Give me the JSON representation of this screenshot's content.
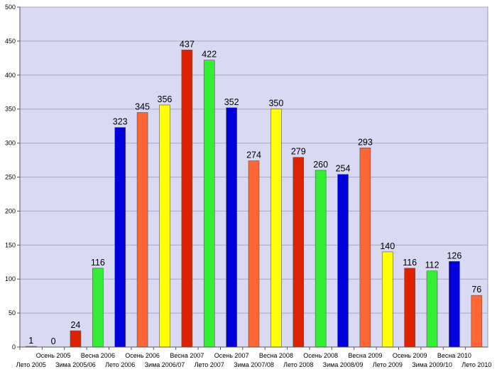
{
  "chart_data": {
    "type": "bar",
    "title": "",
    "xlabel": "",
    "ylabel": "",
    "ylim": [
      0,
      500
    ],
    "yticks": [
      0,
      50,
      100,
      150,
      200,
      250,
      300,
      350,
      400,
      450,
      500
    ],
    "grid": true,
    "legend": "none",
    "background_color": "#d9d9f3",
    "categories": [
      "Лето 2005",
      "Осень 2005",
      "Зима 2005/06",
      "Весна 2006",
      "Лето 2006",
      "Осень 2006",
      "Зима 2006/07",
      "Весна 2007",
      "Лето 2007",
      "Осень 2007",
      "Зима 2007/08",
      "Весна 2008",
      "Лето 2008",
      "Осень 2008",
      "Зима 2008/09",
      "Весна 2009",
      "Лето 2009",
      "Осень 2009",
      "Зима 2009/10",
      "Весна 2010",
      "Лето 2010"
    ],
    "values": [
      1,
      0,
      24,
      116,
      323,
      345,
      356,
      437,
      422,
      352,
      274,
      350,
      279,
      260,
      254,
      293,
      140,
      116,
      112,
      126,
      76
    ],
    "colors": [
      "#ff6633",
      "#ffff00",
      "#dd2200",
      "#33ee33",
      "#0000dd",
      "#ff6633",
      "#ffff00",
      "#dd2200",
      "#33ee33",
      "#0000dd",
      "#ff6633",
      "#ffff00",
      "#dd2200",
      "#33ee33",
      "#0000dd",
      "#ff6633",
      "#ffff00",
      "#dd2200",
      "#33ee33",
      "#0000dd",
      "#ff6633"
    ]
  }
}
